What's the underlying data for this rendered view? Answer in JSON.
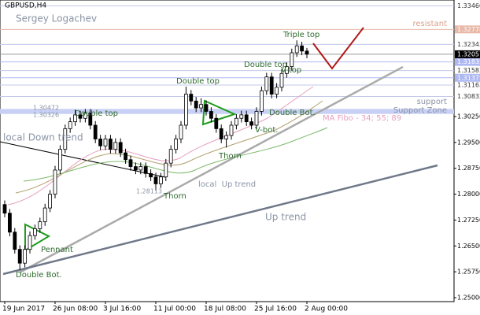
{
  "chart_data": {
    "type": "candlestick",
    "title": "GBPUSD,H4",
    "open": [
      1.277,
      1.2745,
      1.269,
      1.264,
      1.26,
      1.264,
      1.268,
      1.27,
      1.272,
      1.276,
      1.28,
      1.287,
      1.293,
      1.299,
      1.301,
      1.303,
      1.302,
      1.3035,
      1.3,
      1.296,
      1.294,
      1.296,
      1.293,
      1.295,
      1.292,
      1.29,
      1.288,
      1.287,
      1.288,
      1.286,
      1.285,
      1.283,
      1.285,
      1.289,
      1.293,
      1.296,
      1.3,
      1.309,
      1.307,
      1.305,
      1.306,
      1.304,
      1.302,
      1.299,
      1.296,
      1.297,
      1.3,
      1.302,
      1.303,
      1.301,
      1.3,
      1.304,
      1.31,
      1.314,
      1.309,
      1.311,
      1.315,
      1.317,
      1.321,
      1.323,
      1.3215
    ],
    "high": [
      1.2782,
      1.2757,
      1.2702,
      1.2652,
      1.2652,
      1.2692,
      1.2712,
      1.2732,
      1.2772,
      1.2812,
      1.2882,
      1.2942,
      1.3002,
      1.3022,
      1.3045,
      1.3042,
      1.3047,
      1.3047,
      1.3012,
      1.2972,
      1.2972,
      1.2972,
      1.2962,
      1.2962,
      1.2932,
      1.2912,
      1.2892,
      1.2892,
      1.2892,
      1.2872,
      1.2862,
      1.2862,
      1.2902,
      1.2942,
      1.2972,
      1.3012,
      1.3112,
      1.3102,
      1.3082,
      1.3078,
      1.3072,
      1.3052,
      1.3032,
      1.3002,
      1.2982,
      1.3012,
      1.3032,
      1.3042,
      1.3042,
      1.3022,
      1.3052,
      1.3112,
      1.3152,
      1.3152,
      1.3122,
      1.3162,
      1.3182,
      1.3222,
      1.3246,
      1.3242,
      1.3224
    ],
    "low": [
      1.2733,
      1.2678,
      1.2628,
      1.258,
      1.2588,
      1.2628,
      1.2668,
      1.2688,
      1.2708,
      1.2748,
      1.2788,
      1.2858,
      1.2918,
      1.2978,
      1.2998,
      1.3008,
      1.3008,
      1.2988,
      1.2948,
      1.2928,
      1.2928,
      1.2918,
      1.2918,
      1.2908,
      1.2888,
      1.2868,
      1.2858,
      1.2858,
      1.2848,
      1.2838,
      1.2811,
      1.2818,
      1.2838,
      1.2878,
      1.2918,
      1.2948,
      1.2988,
      1.3058,
      1.3038,
      1.3038,
      1.3028,
      1.3008,
      1.2978,
      1.2948,
      1.2935,
      1.2958,
      1.2988,
      1.3008,
      1.2998,
      1.2988,
      1.2988,
      1.3028,
      1.3088,
      1.3078,
      1.3078,
      1.3098,
      1.3138,
      1.3158,
      1.3198,
      1.3203,
      1.3194
    ],
    "close": [
      1.2745,
      1.269,
      1.264,
      1.26,
      1.264,
      1.268,
      1.27,
      1.272,
      1.276,
      1.28,
      1.287,
      1.293,
      1.299,
      1.301,
      1.303,
      1.302,
      1.3035,
      1.3,
      1.296,
      1.294,
      1.296,
      1.293,
      1.295,
      1.292,
      1.29,
      1.288,
      1.287,
      1.288,
      1.286,
      1.285,
      1.283,
      1.285,
      1.289,
      1.293,
      1.296,
      1.3,
      1.309,
      1.307,
      1.305,
      1.306,
      1.304,
      1.302,
      1.299,
      1.296,
      1.297,
      1.3,
      1.302,
      1.303,
      1.301,
      1.3,
      1.304,
      1.31,
      1.314,
      1.309,
      1.311,
      1.315,
      1.317,
      1.321,
      1.323,
      1.3215,
      1.3206
    ],
    "ylim": [
      1.2468,
      1.3363
    ],
    "yticks": [
      {
        "value": 1.3025,
        "label": "1.30250"
      },
      {
        "value": 1.295,
        "label": "1.29500"
      },
      {
        "value": 1.2875,
        "label": "1.28750"
      },
      {
        "value": 1.28,
        "label": "1.28000"
      },
      {
        "value": 1.2725,
        "label": "1.27250"
      },
      {
        "value": 1.265,
        "label": "1.26500"
      },
      {
        "value": 1.2575,
        "label": "1.25750"
      },
      {
        "value": 1.25,
        "label": "1.25000"
      }
    ],
    "xlim": [
      -0.5,
      89.5
    ],
    "xticks": [
      {
        "value": 0,
        "label": "19 Jun 2017"
      },
      {
        "value": 10,
        "label": "26 Jun 08:00"
      },
      {
        "value": 20,
        "label": "3 Jul 16:00"
      },
      {
        "value": 30,
        "label": "11 Jul 00:00"
      },
      {
        "value": 40,
        "label": "18 Jul 08:00"
      },
      {
        "value": 50,
        "label": "25 Jul 16:00"
      },
      {
        "value": 60,
        "label": "2 Aug 00:00"
      }
    ],
    "levels": [
      {
        "value": 1.3346,
        "label": "1.33460"
      },
      {
        "value": 1.32778,
        "label": "1.32778"
      },
      {
        "value": 1.32343,
        "label": "1.32343"
      },
      {
        "value": 1.31835,
        "label": "1.31835"
      },
      {
        "value": 1.31583,
        "label": "1.31583"
      },
      {
        "value": 1.31375,
        "label": "1.31375"
      },
      {
        "value": 1.31163,
        "label": "1.31163"
      },
      {
        "value": 1.30832,
        "label": "1.30832"
      }
    ],
    "current_price": 1.32057,
    "support_zone": {
      "low": 1.30326,
      "high": 1.30472
    },
    "lowest": 1.28113,
    "annotations": [
      "Sergey Logachev",
      "resistant",
      "Triple top",
      "Double top",
      "V-top",
      "Double top",
      "Double top",
      "Double Bot.",
      "V-bot.",
      "Thorn",
      "Thorn",
      "support",
      "Support Zone",
      "MA Fibo - 34; 55; 89",
      "local Down trend",
      "local  Up trend",
      "Up trend",
      "Pennant",
      "Double Bot."
    ]
  }
}
